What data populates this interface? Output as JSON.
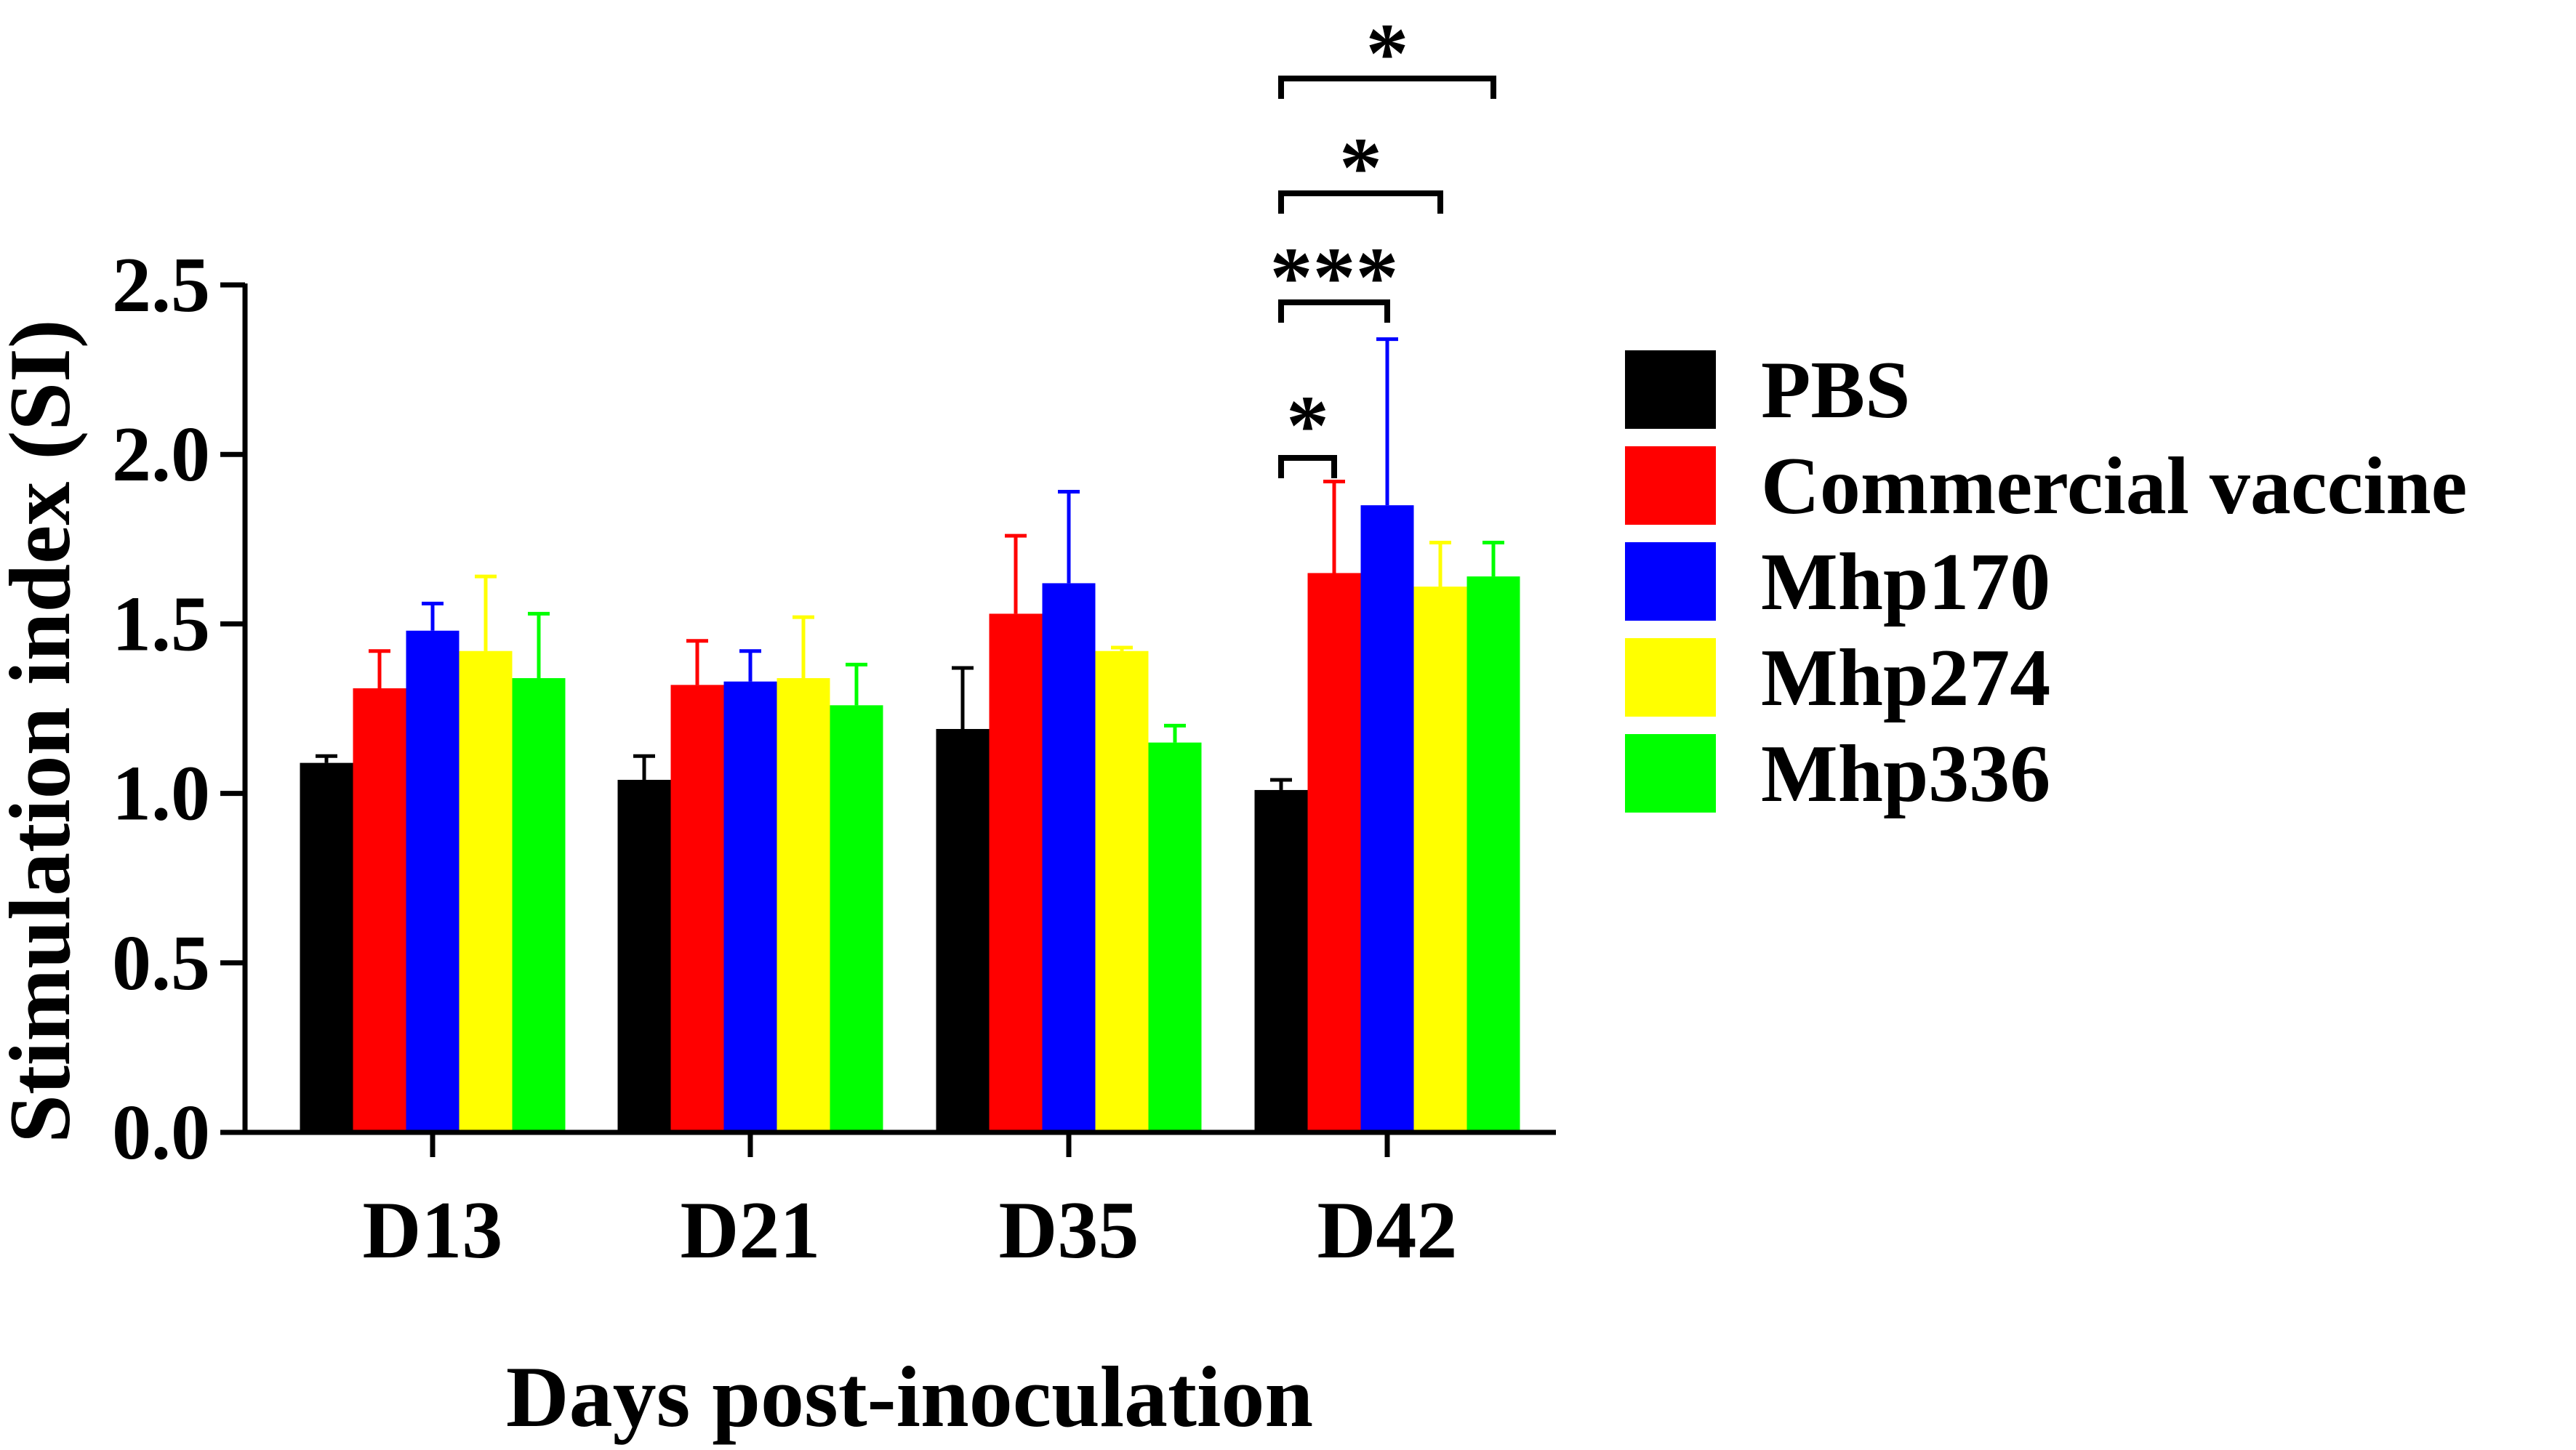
{
  "chart_data": {
    "type": "bar",
    "title": "",
    "xlabel": "Days post-inoculation",
    "ylabel": "Stimulation index (SI)",
    "ylim": [
      0,
      2.5
    ],
    "yticks": [
      "0.0",
      "0.5",
      "1.0",
      "1.5",
      "2.0",
      "2.5"
    ],
    "categories": [
      "D13",
      "D21",
      "D35",
      "D42"
    ],
    "legend_position": "right",
    "series": [
      {
        "name": "PBS",
        "color": "#000000",
        "values": [
          1.09,
          1.04,
          1.19,
          1.01
        ],
        "errors": [
          0.02,
          0.07,
          0.18,
          0.03
        ]
      },
      {
        "name": "Commercial vaccine",
        "color": "#ff0000",
        "values": [
          1.31,
          1.32,
          1.53,
          1.65
        ],
        "errors": [
          0.11,
          0.13,
          0.23,
          0.27
        ]
      },
      {
        "name": "Mhp170",
        "color": "#0000ff",
        "values": [
          1.48,
          1.33,
          1.62,
          1.85
        ],
        "errors": [
          0.08,
          0.09,
          0.27,
          0.49
        ]
      },
      {
        "name": "Mhp274",
        "color": "#ffff00",
        "values": [
          1.42,
          1.34,
          1.42,
          1.61
        ],
        "errors": [
          0.22,
          0.18,
          0.01,
          0.13
        ]
      },
      {
        "name": "Mhp336",
        "color": "#00ff00",
        "values": [
          1.34,
          1.26,
          1.15,
          1.64
        ],
        "errors": [
          0.19,
          0.12,
          0.05,
          0.1
        ]
      }
    ],
    "significance": [
      {
        "group": "D42",
        "from": "PBS",
        "to": "Commercial vaccine",
        "label": "*"
      },
      {
        "group": "D42",
        "from": "PBS",
        "to": "Mhp170",
        "label": "***"
      },
      {
        "group": "D42",
        "from": "PBS",
        "to": "Mhp274",
        "label": "*"
      },
      {
        "group": "D42",
        "from": "PBS",
        "to": "Mhp336",
        "label": "*"
      }
    ]
  }
}
